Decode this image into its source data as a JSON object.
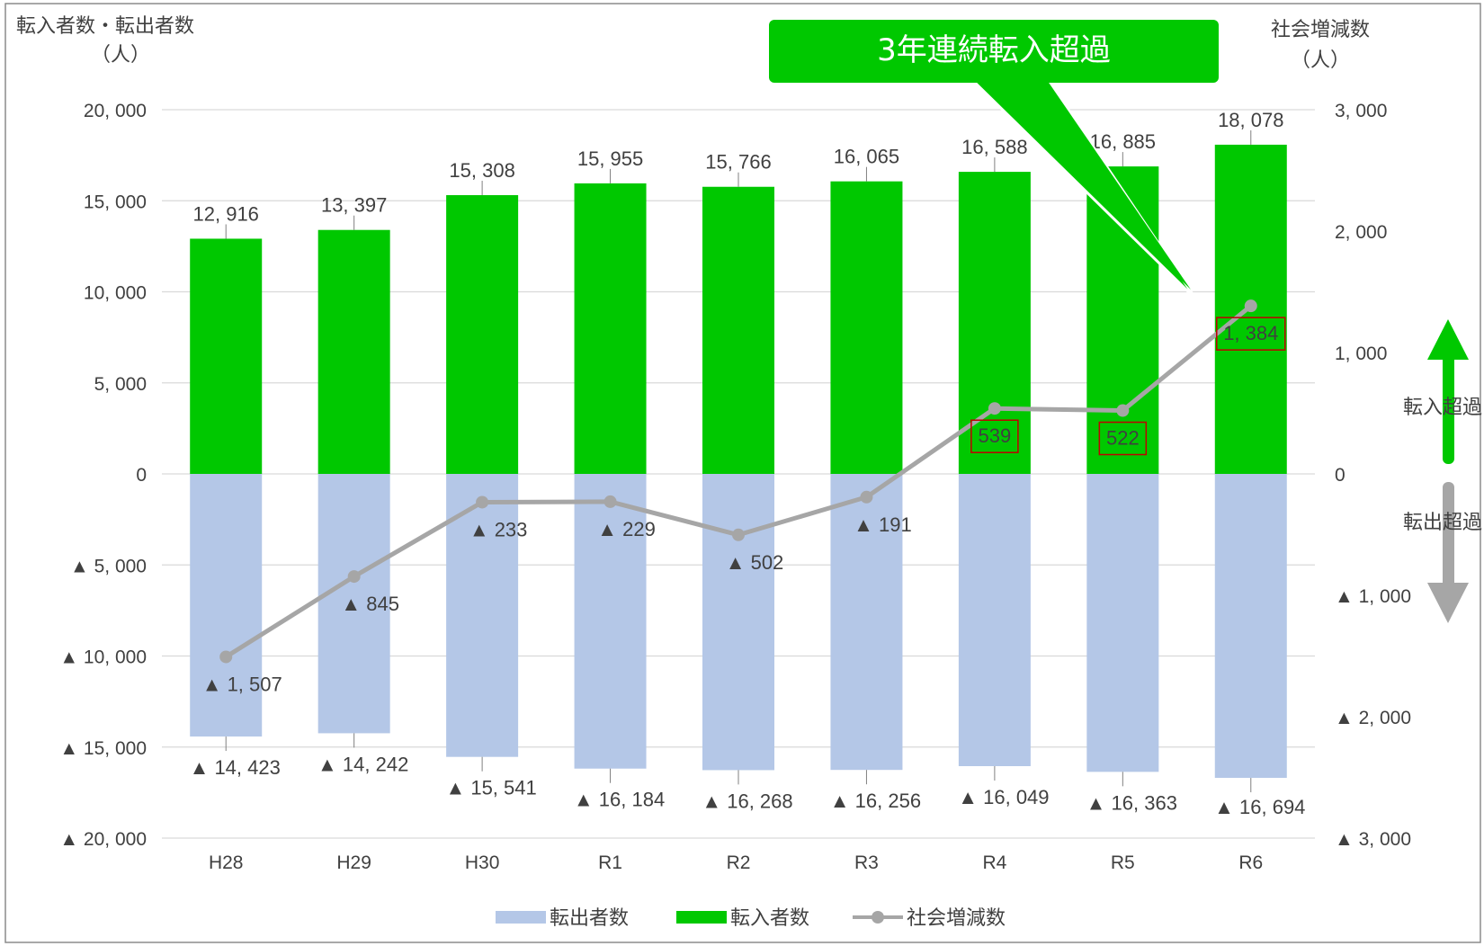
{
  "chart_data": {
    "type": "bar",
    "y_left_title": "転入者数・転出者数",
    "y_left_unit": "（人）",
    "y_right_title": "社会増減数",
    "y_right_unit": "（人）",
    "categories": [
      "H28",
      "H29",
      "H30",
      "R1",
      "R2",
      "R3",
      "R4",
      "R5",
      "R6"
    ],
    "ylim_left": [
      -20000,
      20000
    ],
    "ylim_right": [
      -3000,
      3000
    ],
    "y_left_ticks": [
      {
        "value": 20000,
        "label": "20, 000"
      },
      {
        "value": 15000,
        "label": "15, 000"
      },
      {
        "value": 10000,
        "label": "10, 000"
      },
      {
        "value": 5000,
        "label": "5, 000"
      },
      {
        "value": 0,
        "label": "0"
      },
      {
        "value": -5000,
        "label": "▲ 5, 000"
      },
      {
        "value": -10000,
        "label": "▲ 10, 000"
      },
      {
        "value": -15000,
        "label": "▲ 15, 000"
      },
      {
        "value": -20000,
        "label": "▲ 20, 000"
      }
    ],
    "y_right_ticks": [
      {
        "value": 3000,
        "label": "3, 000"
      },
      {
        "value": 2000,
        "label": "2, 000"
      },
      {
        "value": 1000,
        "label": "1, 000"
      },
      {
        "value": 0,
        "label": "0"
      },
      {
        "value": -1000,
        "label": "▲ 1, 000"
      },
      {
        "value": -2000,
        "label": "▲ 2, 000"
      },
      {
        "value": -3000,
        "label": "▲ 3, 000"
      }
    ],
    "series": [
      {
        "name": "転出者数",
        "type": "bar",
        "color": "#b4c7e7",
        "values": [
          -14423,
          -14242,
          -15541,
          -16184,
          -16268,
          -16256,
          -16049,
          -16363,
          -16694
        ],
        "labels": [
          "▲ 14, 423",
          "▲ 14, 242",
          "▲ 15, 541",
          "▲ 16, 184",
          "▲ 16, 268",
          "▲ 16, 256",
          "▲ 16, 049",
          "▲ 16, 363",
          "▲ 16, 694"
        ]
      },
      {
        "name": "転入者数",
        "type": "bar",
        "color": "#00c800",
        "values": [
          12916,
          13397,
          15308,
          15955,
          15766,
          16065,
          16588,
          16885,
          18078
        ],
        "labels": [
          "12, 916",
          "13, 397",
          "15, 308",
          "15, 955",
          "15, 766",
          "16, 065",
          "16, 588",
          "16, 885",
          "18, 078"
        ]
      },
      {
        "name": "社会増減数",
        "type": "line",
        "axis": "right",
        "color": "#a6a6a6",
        "values": [
          -1507,
          -845,
          -233,
          -229,
          -502,
          -191,
          539,
          522,
          1384
        ],
        "labels": [
          "▲ 1, 507",
          "▲ 845",
          "▲ 233",
          "▲ 229",
          "▲ 502",
          "▲ 191",
          "539",
          "522",
          "1, 384"
        ],
        "boxed": [
          false,
          false,
          false,
          false,
          false,
          false,
          true,
          true,
          true
        ]
      }
    ],
    "legend_position": "bottom",
    "grid": true,
    "annotation": "3年連続転入超過",
    "arrow_up_label": "転入超過",
    "arrow_down_label": "転出超過",
    "accent_color": "#00c800",
    "box_color": "#c00000"
  }
}
